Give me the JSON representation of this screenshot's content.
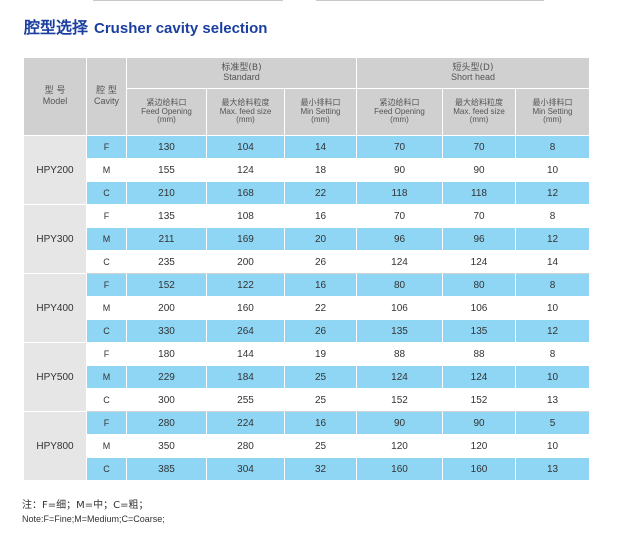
{
  "title": {
    "zh": "腔型选择",
    "en": "Crusher cavity selection"
  },
  "headers": {
    "model": {
      "zh": "型  号",
      "en": "Model"
    },
    "cavity": {
      "zh": "腔  型",
      "en": "Cavity"
    },
    "standard": {
      "zh": "标准型(B)",
      "en": "Standard"
    },
    "short": {
      "zh": "短头型(D)",
      "en": "Short head"
    },
    "cols": [
      {
        "zh": "紧边给料口",
        "en": "Feed Opening",
        "unit": "(mm)"
      },
      {
        "zh": "最大给料粒度",
        "en": "Max. feed size",
        "unit": "(mm)"
      },
      {
        "zh": "最小排料口",
        "en": "Min Setting",
        "unit": "(mm)"
      },
      {
        "zh": "紧边给料口",
        "en": "Feed Opening",
        "unit": "(mm)"
      },
      {
        "zh": "最大给料粒度",
        "en": "Max. feed size",
        "unit": "(mm)"
      },
      {
        "zh": "最小排料口",
        "en": "Min Setting",
        "unit": "(mm)"
      }
    ]
  },
  "models": [
    {
      "name": "HPY200",
      "rows": [
        {
          "cavity": "F",
          "values": [
            "130",
            "104",
            "14",
            "70",
            "70",
            "8"
          ]
        },
        {
          "cavity": "M",
          "values": [
            "155",
            "124",
            "18",
            "90",
            "90",
            "10"
          ]
        },
        {
          "cavity": "C",
          "values": [
            "210",
            "168",
            "22",
            "118",
            "118",
            "12"
          ]
        }
      ]
    },
    {
      "name": "HPY300",
      "rows": [
        {
          "cavity": "F",
          "values": [
            "135",
            "108",
            "16",
            "70",
            "70",
            "8"
          ]
        },
        {
          "cavity": "M",
          "values": [
            "211",
            "169",
            "20",
            "96",
            "96",
            "12"
          ]
        },
        {
          "cavity": "C",
          "values": [
            "235",
            "200",
            "26",
            "124",
            "124",
            "14"
          ]
        }
      ]
    },
    {
      "name": "HPY400",
      "rows": [
        {
          "cavity": "F",
          "values": [
            "152",
            "122",
            "16",
            "80",
            "80",
            "8"
          ]
        },
        {
          "cavity": "M",
          "values": [
            "200",
            "160",
            "22",
            "106",
            "106",
            "10"
          ]
        },
        {
          "cavity": "C",
          "values": [
            "330",
            "264",
            "26",
            "135",
            "135",
            "12"
          ]
        }
      ]
    },
    {
      "name": "HPY500",
      "rows": [
        {
          "cavity": "F",
          "values": [
            "180",
            "144",
            "19",
            "88",
            "88",
            "8"
          ]
        },
        {
          "cavity": "M",
          "values": [
            "229",
            "184",
            "25",
            "124",
            "124",
            "10"
          ]
        },
        {
          "cavity": "C",
          "values": [
            "300",
            "255",
            "25",
            "152",
            "152",
            "13"
          ]
        }
      ]
    },
    {
      "name": "HPY800",
      "rows": [
        {
          "cavity": "F",
          "values": [
            "280",
            "224",
            "16",
            "90",
            "90",
            "5"
          ]
        },
        {
          "cavity": "M",
          "values": [
            "350",
            "280",
            "25",
            "120",
            "120",
            "10"
          ]
        },
        {
          "cavity": "C",
          "values": [
            "385",
            "304",
            "32",
            "160",
            "160",
            "13"
          ]
        }
      ]
    }
  ],
  "notes": {
    "zh": "注：F=细；M=中；C=粗；",
    "en": "Note:F=Fine;M=Medium;C=Coarse;"
  },
  "colors": {
    "title": "#1b3fa0",
    "header_bg": "#d0d0d0",
    "model_bg": "#e6e6e6",
    "highlight_row": "#8fd6f5"
  }
}
